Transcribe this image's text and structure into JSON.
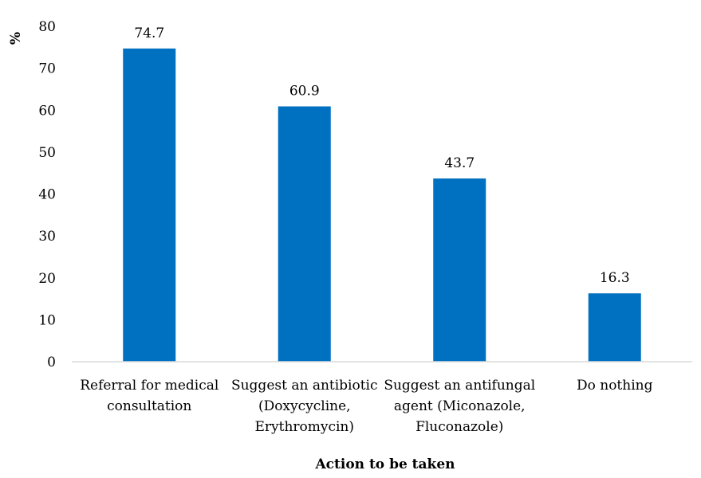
{
  "chart_data": {
    "type": "bar",
    "categories": [
      [
        "Referral for medical",
        "consultation"
      ],
      [
        "Suggest an antibiotic",
        "(Doxycycline,",
        "Erythromycin)"
      ],
      [
        "Suggest an antifungal",
        "agent (Miconazole,",
        "Fluconazole)"
      ],
      [
        "Do nothing"
      ]
    ],
    "values": [
      74.7,
      60.9,
      43.7,
      16.3
    ],
    "data_labels": [
      "74.7",
      "60.9",
      "43.7",
      "16.3"
    ],
    "title": "",
    "xlabel": "Action to be taken",
    "ylabel": "%",
    "ylim": [
      0,
      80
    ],
    "yticks": [
      0,
      10,
      20,
      30,
      40,
      50,
      60,
      70,
      80
    ],
    "grid": false,
    "legend": "none",
    "bar_color": "#0070C0",
    "axis_color": "#d9d9d9"
  }
}
